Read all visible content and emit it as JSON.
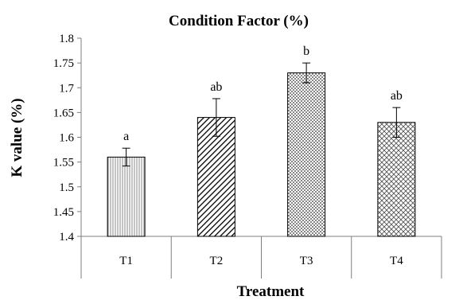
{
  "chart_data": {
    "type": "bar",
    "title": "Condition Factor (%)",
    "xlabel": "Treatment",
    "ylabel": "K value (%)",
    "categories": [
      "T1",
      "T2",
      "T3",
      "T4"
    ],
    "values": [
      1.56,
      1.64,
      1.73,
      1.63
    ],
    "errors": [
      0.018,
      0.038,
      0.02,
      0.03
    ],
    "significance_labels": [
      "a",
      "ab",
      "b",
      "ab"
    ],
    "patterns": [
      "vertical-lines",
      "diagonal-lines",
      "dots",
      "crosshatch"
    ],
    "ylim": [
      1.4,
      1.8
    ],
    "yticks": [
      "1.4",
      "1.45",
      "1.5",
      "1.55",
      "1.6",
      "1.65",
      "1.7",
      "1.75",
      "1.8"
    ],
    "grid": false,
    "legend": "none"
  }
}
